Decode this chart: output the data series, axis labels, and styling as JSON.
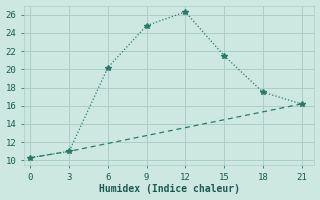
{
  "line1_x": [
    0,
    3,
    6,
    9,
    12,
    15,
    18,
    21
  ],
  "line1_y": [
    10.3,
    11.0,
    20.2,
    24.8,
    26.3,
    21.5,
    17.5,
    16.2
  ],
  "line2_x": [
    0,
    3,
    21
  ],
  "line2_y": [
    10.3,
    11.0,
    16.2
  ],
  "line_color": "#2a7a6a",
  "background_color": "#cce8e0",
  "xlabel": "Humidex (Indice chaleur)",
  "xlim": [
    -0.5,
    22
  ],
  "ylim": [
    9.5,
    27
  ],
  "xticks": [
    0,
    3,
    6,
    9,
    12,
    15,
    18,
    21
  ],
  "yticks": [
    10,
    12,
    14,
    16,
    18,
    20,
    22,
    24,
    26
  ],
  "grid_color": "#aacfc8",
  "font_color": "#1a5a50",
  "markersize": 4
}
